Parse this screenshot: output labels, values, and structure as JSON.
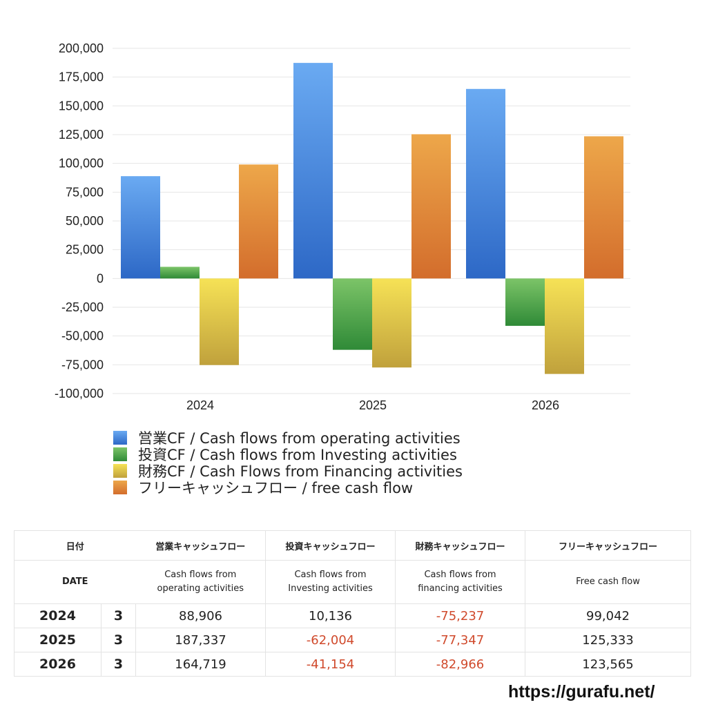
{
  "chart_data": {
    "type": "bar",
    "categories": [
      "2024",
      "2025",
      "2026"
    ],
    "series": [
      {
        "name": "営業CF / Cash flows from operating activities",
        "values": [
          88906,
          187337,
          164719
        ],
        "color": "#4a8ee6"
      },
      {
        "name": "投資CF / Cash flows from Investing activities",
        "values": [
          10136,
          -62004,
          -41154
        ],
        "color": "#53a845"
      },
      {
        "name": "財務CF / Cash Flows from Financing activities",
        "values": [
          -75237,
          -77347,
          -82966
        ],
        "color": "#e6d048"
      },
      {
        "name": "フリーキャッシュフロー / free cash flow",
        "values": [
          99042,
          125333,
          123565
        ],
        "color": "#e08a3a"
      }
    ],
    "ylim": [
      -100000,
      200000
    ],
    "yticks": [
      "200,000",
      "175,000",
      "150,000",
      "125,000",
      "100,000",
      "75,000",
      "50,000",
      "25,000",
      "0",
      "-25,000",
      "-50,000",
      "-75,000",
      "-100,000"
    ],
    "ytick_values": [
      200000,
      175000,
      150000,
      125000,
      100000,
      75000,
      50000,
      25000,
      0,
      -25000,
      -50000,
      -75000,
      -100000
    ],
    "grid": true,
    "legend_position": "bottom"
  },
  "table": {
    "header_jp": [
      "日付",
      "営業キャッシュフロー",
      "投資キャッシュフロー",
      "財務キャッシュフロー",
      "フリーキャッシュフロー"
    ],
    "header_en": {
      "date": "DATE",
      "operating_1": "Cash flows from",
      "operating_2": "operating activities",
      "investing_1": "Cash flows from",
      "investing_2": "Investing activities",
      "financing_1": "Cash flows from",
      "financing_2": "financing activities",
      "free": "Free cash flow"
    },
    "rows": [
      {
        "year": "2024",
        "month": "3",
        "operating": "88,906",
        "investing": "10,136",
        "financing": "-75,237",
        "free": "99,042"
      },
      {
        "year": "2025",
        "month": "3",
        "operating": "187,337",
        "investing": "-62,004",
        "financing": "-77,347",
        "free": "125,333"
      },
      {
        "year": "2026",
        "month": "3",
        "operating": "164,719",
        "investing": "-41,154",
        "financing": "-82,966",
        "free": "123,565"
      }
    ]
  },
  "site_url": "https://gurafu.net/"
}
